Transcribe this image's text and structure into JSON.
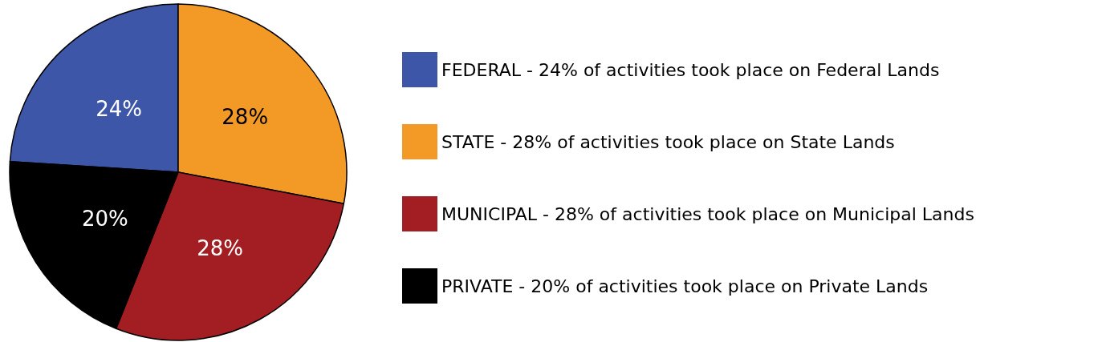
{
  "chart_data": {
    "type": "pie",
    "categories": [
      "FEDERAL - 24% of activities took place on Federal Lands",
      "STATE - 28% of activities took place on State Lands",
      "MUNICIPAL - 28% of activities took place on Municipal Lands",
      "PRIVATE - 20% of activities took place on Private Lands"
    ],
    "values": [
      24,
      28,
      28,
      20
    ],
    "value_labels": [
      "24%",
      "28%",
      "28%",
      "20%"
    ],
    "data_labels": true,
    "colors": [
      "#3d56a8",
      "#f39a26",
      "#a31e22",
      "#000000"
    ],
    "legend": "right"
  }
}
